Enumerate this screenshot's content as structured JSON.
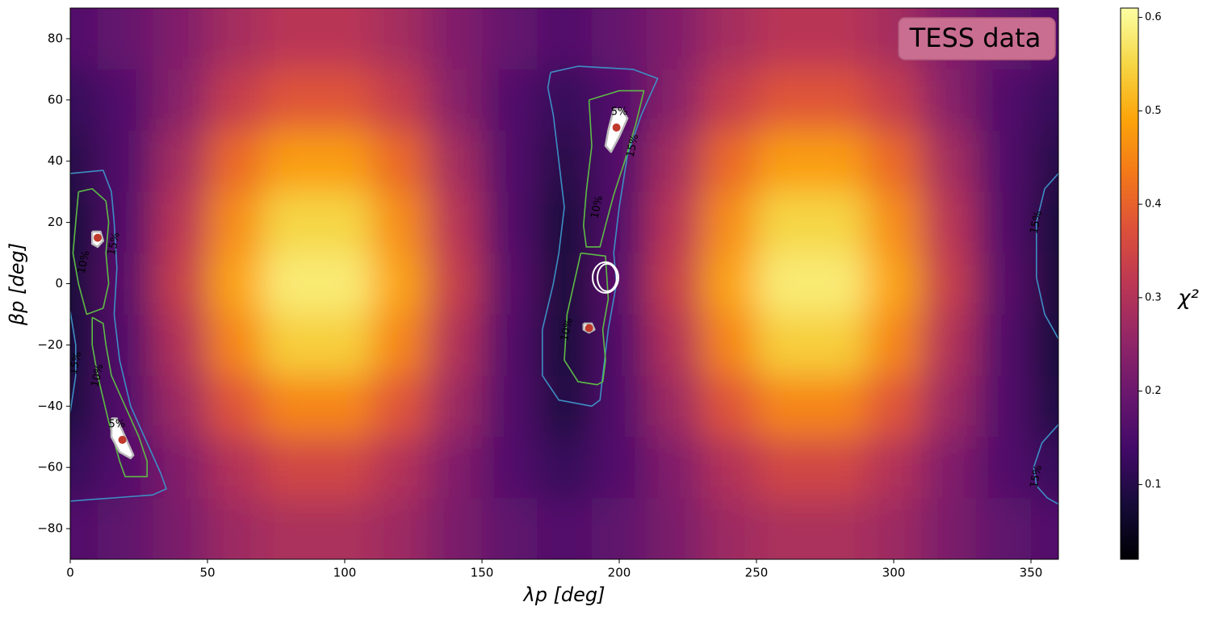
{
  "chart_data": {
    "type": "heatmap",
    "title": "TESS data",
    "title_color": "#c96e90",
    "xlabel": "λp [deg]",
    "ylabel": "βp [deg]",
    "xlim": [
      0,
      360
    ],
    "ylim": [
      -90,
      90
    ],
    "xticks": [
      0,
      50,
      100,
      150,
      200,
      250,
      300,
      350
    ],
    "yticks": [
      {
        "value": -80,
        "label": "−80"
      },
      {
        "value": -60,
        "label": "−60"
      },
      {
        "value": -40,
        "label": "−40"
      },
      {
        "value": -20,
        "label": "−20"
      },
      0,
      20,
      40,
      60,
      80
    ],
    "colormap": "inferno",
    "x": [
      0,
      20,
      40,
      60,
      80,
      100,
      120,
      140,
      160,
      180,
      200,
      220,
      240,
      260,
      280,
      300,
      320,
      340,
      360
    ],
    "y": [
      80,
      60,
      40,
      20,
      0,
      -20,
      -40,
      -60,
      -80
    ],
    "z": [
      [
        0.16,
        0.19,
        0.23,
        0.28,
        0.31,
        0.31,
        0.28,
        0.23,
        0.19,
        0.16,
        0.19,
        0.23,
        0.28,
        0.31,
        0.31,
        0.28,
        0.23,
        0.19,
        0.16
      ],
      [
        0.12,
        0.16,
        0.24,
        0.33,
        0.38,
        0.38,
        0.33,
        0.24,
        0.16,
        0.12,
        0.16,
        0.24,
        0.33,
        0.38,
        0.38,
        0.33,
        0.24,
        0.16,
        0.12
      ],
      [
        0.1,
        0.16,
        0.28,
        0.41,
        0.48,
        0.48,
        0.41,
        0.28,
        0.16,
        0.1,
        0.16,
        0.28,
        0.41,
        0.48,
        0.48,
        0.41,
        0.28,
        0.16,
        0.1
      ],
      [
        0.08,
        0.16,
        0.31,
        0.46,
        0.55,
        0.55,
        0.46,
        0.31,
        0.16,
        0.08,
        0.16,
        0.31,
        0.46,
        0.55,
        0.55,
        0.46,
        0.31,
        0.16,
        0.08
      ],
      [
        0.08,
        0.17,
        0.33,
        0.49,
        0.58,
        0.58,
        0.49,
        0.33,
        0.17,
        0.08,
        0.17,
        0.33,
        0.49,
        0.58,
        0.58,
        0.49,
        0.33,
        0.17,
        0.08
      ],
      [
        0.08,
        0.16,
        0.3,
        0.45,
        0.54,
        0.54,
        0.45,
        0.3,
        0.16,
        0.08,
        0.16,
        0.3,
        0.45,
        0.54,
        0.54,
        0.45,
        0.3,
        0.16,
        0.08
      ],
      [
        0.09,
        0.16,
        0.27,
        0.38,
        0.45,
        0.45,
        0.38,
        0.27,
        0.16,
        0.09,
        0.16,
        0.27,
        0.38,
        0.45,
        0.45,
        0.38,
        0.27,
        0.16,
        0.09
      ],
      [
        0.12,
        0.16,
        0.23,
        0.3,
        0.35,
        0.35,
        0.3,
        0.23,
        0.16,
        0.12,
        0.16,
        0.23,
        0.3,
        0.35,
        0.35,
        0.3,
        0.23,
        0.16,
        0.12
      ],
      [
        0.16,
        0.18,
        0.22,
        0.27,
        0.29,
        0.29,
        0.27,
        0.22,
        0.18,
        0.16,
        0.18,
        0.22,
        0.27,
        0.29,
        0.29,
        0.27,
        0.22,
        0.18,
        0.16
      ]
    ],
    "contours": [
      {
        "label": "15%",
        "color": "#3d8ec4",
        "lines": [
          {
            "x": [
              0,
              12,
              15,
              16,
              17,
              16,
              18,
              22,
              28,
              33,
              35,
              30,
              15,
              0
            ],
            "y": [
              36,
              37,
              30,
              20,
              5,
              -10,
              -25,
              -40,
              -52,
              -62,
              -67,
              -69,
              -70,
              -71
            ]
          },
          {
            "x": [
              0,
              2,
              2,
              0
            ],
            "y": [
              -9,
              -20,
              -30,
              -42
            ]
          },
          {
            "x": [
              175,
              185,
              205,
              214,
              208,
              203,
              200,
              198,
              199,
              196,
              194,
              193,
              190,
              178,
              172,
              172,
              176,
              178,
              180,
              178,
              176,
              174,
              175
            ],
            "y": [
              69,
              71,
              70,
              67,
              55,
              42,
              25,
              10,
              0,
              -15,
              -30,
              -38,
              -40,
              -38,
              -30,
              -15,
              0,
              10,
              25,
              40,
              55,
              64,
              69
            ]
          },
          {
            "x": [
              360,
              355,
              352,
              352,
              355,
              360
            ],
            "y": [
              36,
              31,
              20,
              2,
              -10,
              -18
            ]
          },
          {
            "x": [
              360,
              354,
              351,
              352,
              356,
              360
            ],
            "y": [
              -46,
              -52,
              -60,
              -66,
              -70,
              -72
            ]
          }
        ],
        "labels": [
          {
            "x": 16,
            "y": 13
          },
          {
            "x": 2,
            "y": -26
          },
          {
            "x": 205,
            "y": 45
          },
          {
            "x": 352,
            "y": 20
          },
          {
            "x": 352,
            "y": -63
          }
        ]
      },
      {
        "label": "10%",
        "color": "#5dbb46",
        "lines": [
          {
            "x": [
              3,
              8,
              13,
              14,
              13,
              14,
              12,
              6,
              3,
              1,
              2,
              3
            ],
            "y": [
              30,
              31,
              27,
              20,
              10,
              0,
              -8,
              -10,
              0,
              10,
              20,
              30
            ]
          },
          {
            "x": [
              8,
              12,
              13,
              15,
              20,
              25,
              28,
              28,
              20,
              18,
              14,
              10,
              8,
              8
            ],
            "y": [
              -11,
              -13,
              -20,
              -30,
              -40,
              -50,
              -58,
              -63,
              -63,
              -58,
              -45,
              -30,
              -20,
              -11
            ]
          },
          {
            "x": [
              189,
              200,
              209,
              206,
              202,
              198,
              195,
              193,
              188,
              187,
              188,
              190,
              189
            ],
            "y": [
              60,
              63,
              63,
              52,
              40,
              29,
              19,
              12,
              12,
              19,
              30,
              45,
              60
            ]
          },
          {
            "x": [
              186,
              195,
              196,
              194,
              195,
              194,
              192,
              185,
              180,
              181,
              184,
              186
            ],
            "y": [
              10,
              9,
              -5,
              -15,
              -25,
              -32,
              -33,
              -32,
              -25,
              -10,
              2,
              10
            ]
          }
        ],
        "labels": [
          {
            "x": 5,
            "y": 7
          },
          {
            "x": 10,
            "y": -30
          },
          {
            "x": 192,
            "y": 25
          },
          {
            "x": 181,
            "y": -15
          }
        ]
      },
      {
        "label": "5%",
        "color": "#bbbbbb",
        "fill": "#ffffff",
        "lines": [
          {
            "x": [
              8,
              11,
              12,
              10,
              8,
              8
            ],
            "y": [
              17,
              17,
              14,
              12,
              13,
              17
            ]
          },
          {
            "x": [
              15,
              17,
              20,
              23,
              22,
              18,
              15,
              15
            ],
            "y": [
              -44,
              -44,
              -50,
              -56,
              -57,
              -55,
              -50,
              -44
            ]
          },
          {
            "x": [
              198,
              201,
              203,
              200,
              197,
              195,
              196,
              198
            ],
            "y": [
              57,
              57,
              54,
              48,
              43,
              45,
              50,
              57
            ]
          },
          {
            "x": [
              187,
              190,
              191,
              189,
              187,
              187
            ],
            "y": [
              -13,
              -13,
              -15,
              -16,
              -15,
              -13
            ]
          }
        ],
        "labels": [
          {
            "x": 17,
            "y": -46
          },
          {
            "x": 200,
            "y": 56
          }
        ]
      }
    ],
    "markers": {
      "color": "#c0392b",
      "x": [
        10,
        19,
        199,
        189
      ],
      "y": [
        15,
        -51,
        51,
        -14.5
      ]
    },
    "ring": {
      "x": 195,
      "y": 2
    },
    "colorbar": {
      "lim": [
        0.02,
        0.61
      ],
      "ticks": [
        0.1,
        0.2,
        0.3,
        0.4,
        0.5,
        0.6
      ],
      "label": "χ²"
    }
  }
}
